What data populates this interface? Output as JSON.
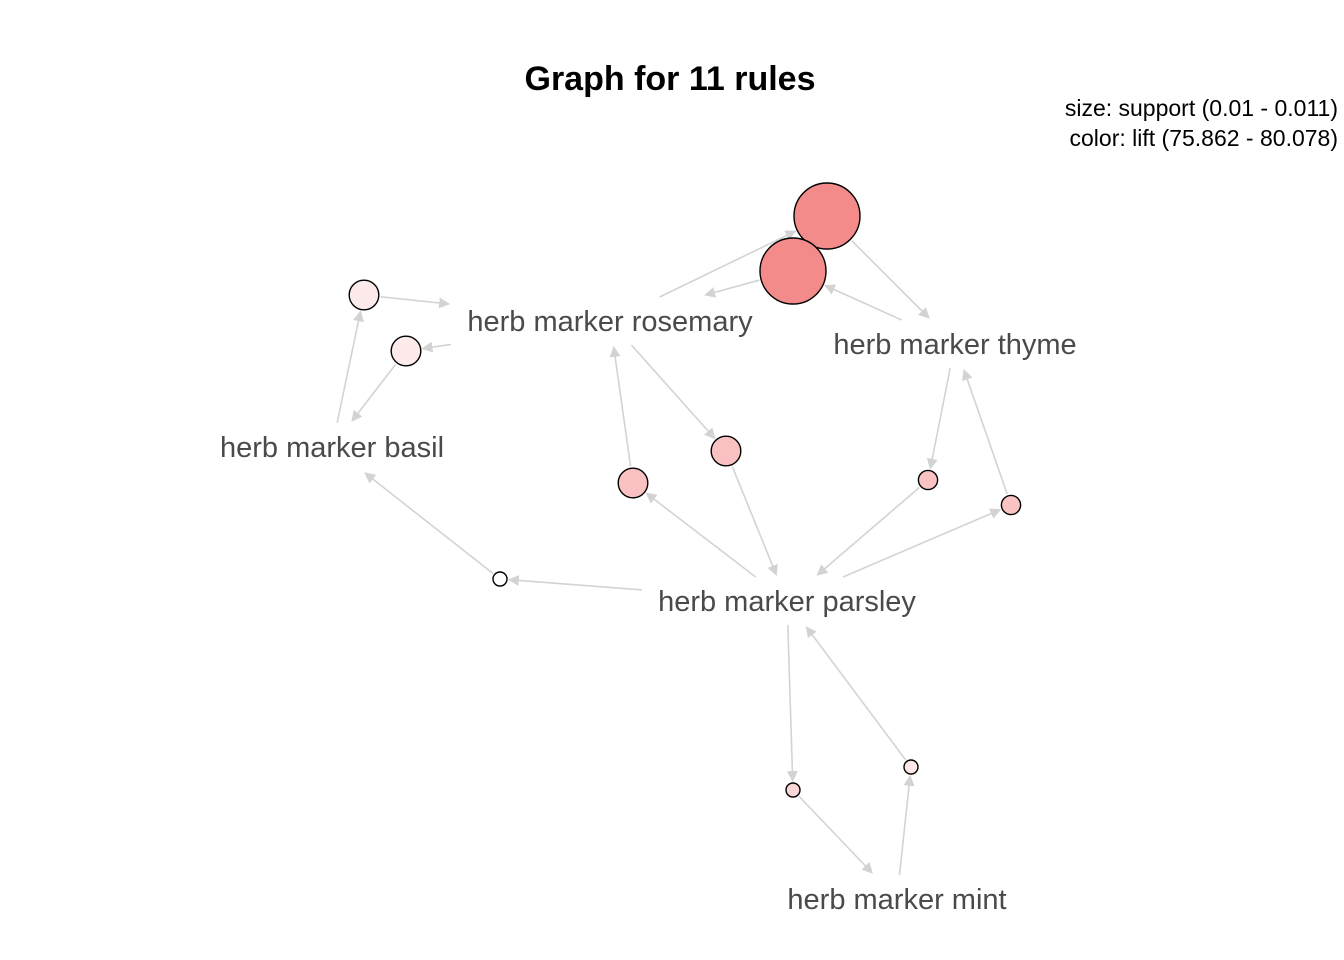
{
  "title": "Graph for 11 rules",
  "legend": {
    "size_text": "size: support (0.01 - 0.011)",
    "color_text": "color: lift (75.862 - 80.078)"
  },
  "colors": {
    "edge": "#d3d3d3",
    "node_stroke": "#000000",
    "label": "#4a4a4a",
    "lift_low": "#ffffff",
    "lift_high": "#f48b8b"
  },
  "support_range": [
    0.01,
    0.011
  ],
  "lift_range": [
    75.862,
    80.078
  ],
  "items": [
    {
      "id": "rosemary",
      "label": "herb marker rosemary"
    },
    {
      "id": "thyme",
      "label": "herb marker thyme"
    },
    {
      "id": "basil",
      "label": "herb marker basil"
    },
    {
      "id": "parsley",
      "label": "herb marker parsley"
    },
    {
      "id": "mint",
      "label": "herb marker mint"
    }
  ],
  "rules": [
    {
      "id": "r1",
      "lhs": [
        "rosemary"
      ],
      "rhs": [
        "thyme"
      ],
      "support": 0.011,
      "lift": 80.078
    },
    {
      "id": "r2",
      "lhs": [
        "thyme"
      ],
      "rhs": [
        "rosemary"
      ],
      "support": 0.011,
      "lift": 80.078
    },
    {
      "id": "r3",
      "lhs": [
        "basil"
      ],
      "rhs": [
        "rosemary"
      ],
      "support": 0.0103,
      "lift": 76.2
    },
    {
      "id": "r4",
      "lhs": [
        "rosemary"
      ],
      "rhs": [
        "basil"
      ],
      "support": 0.0103,
      "lift": 76.2
    },
    {
      "id": "r5",
      "lhs": [
        "parsley"
      ],
      "rhs": [
        "rosemary"
      ],
      "support": 0.0103,
      "lift": 77.6
    },
    {
      "id": "r6",
      "lhs": [
        "rosemary"
      ],
      "rhs": [
        "parsley"
      ],
      "support": 0.0103,
      "lift": 77.6
    },
    {
      "id": "r7",
      "lhs": [
        "thyme"
      ],
      "rhs": [
        "parsley"
      ],
      "support": 0.0101,
      "lift": 77.5
    },
    {
      "id": "r8",
      "lhs": [
        "parsley"
      ],
      "rhs": [
        "thyme"
      ],
      "support": 0.0101,
      "lift": 77.5
    },
    {
      "id": "r9",
      "lhs": [
        "parsley"
      ],
      "rhs": [
        "basil"
      ],
      "support": 0.01,
      "lift": 75.862
    },
    {
      "id": "r10",
      "lhs": [
        "parsley"
      ],
      "rhs": [
        "mint"
      ],
      "support": 0.01,
      "lift": 76.8
    },
    {
      "id": "r11",
      "lhs": [
        "mint"
      ],
      "rhs": [
        "parsley"
      ],
      "support": 0.01,
      "lift": 76.3
    }
  ]
}
